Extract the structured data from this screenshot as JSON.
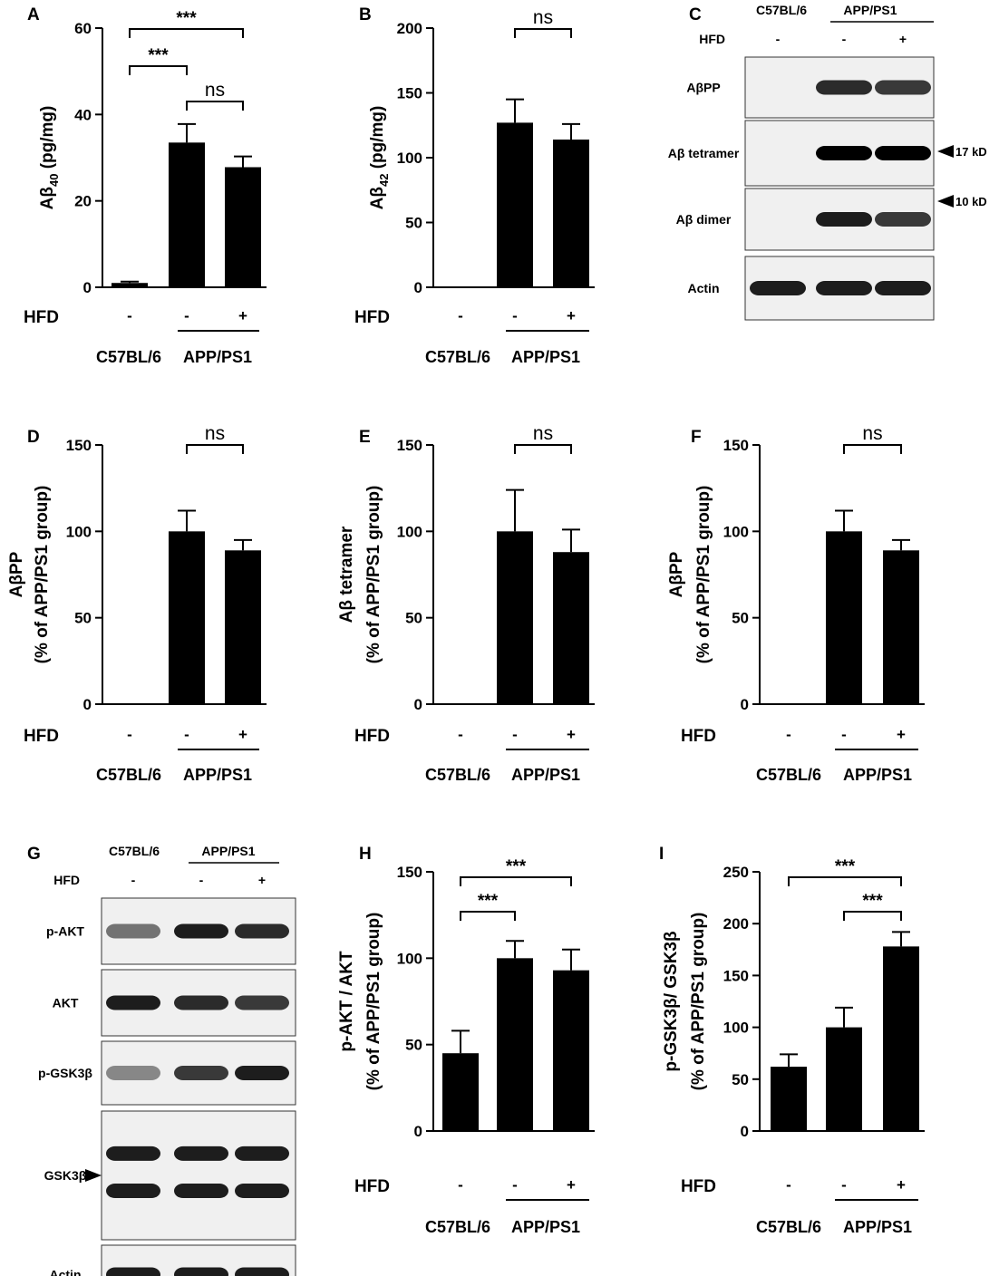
{
  "panels": [
    {
      "letter": "A",
      "ylabel": "Aβ40 (pg/mg)",
      "ylabel_parts": [
        "Aβ",
        "40",
        " (pg/mg)"
      ],
      "yticks": [
        0,
        20,
        40,
        60
      ],
      "ylim": [
        0,
        60
      ],
      "hfd_label": "HFD",
      "hfd_marks": [
        "-",
        "-",
        "+"
      ],
      "group_labels": [
        "C57BL/6",
        "APP/PS1"
      ],
      "sig": [
        {
          "from": 0,
          "to": 1,
          "label": "***"
        },
        {
          "from": 0,
          "to": 2,
          "label": "***"
        },
        {
          "from": 1,
          "to": 2,
          "label": "ns"
        }
      ]
    },
    {
      "letter": "B",
      "ylabel": "Aβ42 (pg/mg)",
      "ylabel_parts": [
        "Aβ",
        "42",
        " (pg/mg)"
      ],
      "yticks": [
        0,
        50,
        100,
        150,
        200
      ],
      "ylim": [
        0,
        200
      ],
      "hfd_label": "HFD",
      "hfd_marks": [
        "-",
        "-",
        "+"
      ],
      "group_labels": [
        "C57BL/6",
        "APP/PS1"
      ],
      "sig": [
        {
          "from": 1,
          "to": 2,
          "label": "ns"
        }
      ]
    },
    {
      "letter": "D",
      "ylabel_lines": [
        "AβPP",
        "(% of APP/PS1 group)"
      ],
      "yticks": [
        0,
        50,
        100,
        150
      ],
      "ylim": [
        0,
        150
      ],
      "hfd_label": "HFD",
      "hfd_marks": [
        "-",
        "-",
        "+"
      ],
      "group_labels": [
        "C57BL/6",
        "APP/PS1"
      ],
      "sig": [
        {
          "from": 1,
          "to": 2,
          "label": "ns"
        }
      ]
    },
    {
      "letter": "E",
      "ylabel_lines": [
        "Aβ tetramer",
        "(% of APP/PS1 group)"
      ],
      "yticks": [
        0,
        50,
        100,
        150
      ],
      "ylim": [
        0,
        150
      ],
      "hfd_label": "HFD",
      "hfd_marks": [
        "-",
        "-",
        "+"
      ],
      "group_labels": [
        "C57BL/6",
        "APP/PS1"
      ],
      "sig": [
        {
          "from": 1,
          "to": 2,
          "label": "ns"
        }
      ]
    },
    {
      "letter": "F",
      "ylabel_lines": [
        "AβPP",
        "(% of APP/PS1 group)"
      ],
      "yticks": [
        0,
        50,
        100,
        150
      ],
      "ylim": [
        0,
        150
      ],
      "hfd_label": "HFD",
      "hfd_marks": [
        "-",
        "-",
        "+"
      ],
      "group_labels": [
        "C57BL/6",
        "APP/PS1"
      ],
      "sig": [
        {
          "from": 1,
          "to": 2,
          "label": "ns"
        }
      ]
    },
    {
      "letter": "H",
      "ylabel_lines": [
        "p-AKT / AKT",
        "(% of APP/PS1 group)"
      ],
      "yticks": [
        0,
        50,
        100,
        150
      ],
      "ylim": [
        0,
        150
      ],
      "hfd_label": "HFD",
      "hfd_marks": [
        "-",
        "-",
        "+"
      ],
      "group_labels": [
        "C57BL/6",
        "APP/PS1"
      ],
      "sig": [
        {
          "from": 0,
          "to": 1,
          "label": "***"
        },
        {
          "from": 0,
          "to": 2,
          "label": "***"
        }
      ]
    },
    {
      "letter": "I",
      "ylabel_lines": [
        "p-GSK3β/ GSK3β",
        "(% of APP/PS1 group)"
      ],
      "yticks": [
        0,
        50,
        100,
        150,
        200,
        250
      ],
      "ylim": [
        0,
        250
      ],
      "hfd_label": "HFD",
      "hfd_marks": [
        "-",
        "-",
        "+"
      ],
      "group_labels": [
        "C57BL/6",
        "APP/PS1"
      ],
      "sig": [
        {
          "from": 1,
          "to": 2,
          "label": "***"
        },
        {
          "from": 0,
          "to": 2,
          "label": "***"
        }
      ]
    }
  ],
  "chart_data": [
    {
      "panel": "A",
      "type": "bar",
      "categories": [
        "C57BL/6 HFD-",
        "APP/PS1 HFD-",
        "APP/PS1 HFD+"
      ],
      "values": [
        1,
        33.5,
        27.8
      ],
      "errors": [
        0.3,
        4.3,
        2.5
      ],
      "ylabel": "Aβ40 (pg/mg)",
      "ylim": [
        0,
        60
      ]
    },
    {
      "panel": "B",
      "type": "bar",
      "categories": [
        "C57BL/6 HFD-",
        "APP/PS1 HFD-",
        "APP/PS1 HFD+"
      ],
      "values": [
        0,
        127,
        114
      ],
      "errors": [
        0,
        18,
        12
      ],
      "ylabel": "Aβ42 (pg/mg)",
      "ylim": [
        0,
        200
      ]
    },
    {
      "panel": "D",
      "type": "bar",
      "categories": [
        "C57BL/6 HFD-",
        "APP/PS1 HFD-",
        "APP/PS1 HFD+"
      ],
      "values": [
        0,
        100,
        89
      ],
      "errors": [
        0,
        12,
        6
      ],
      "ylabel": "AβPP (% of APP/PS1 group)",
      "ylim": [
        0,
        150
      ]
    },
    {
      "panel": "E",
      "type": "bar",
      "categories": [
        "C57BL/6 HFD-",
        "APP/PS1 HFD-",
        "APP/PS1 HFD+"
      ],
      "values": [
        0,
        100,
        88
      ],
      "errors": [
        0,
        24,
        13
      ],
      "ylabel": "Aβ tetramer (% of APP/PS1 group)",
      "ylim": [
        0,
        150
      ]
    },
    {
      "panel": "F",
      "type": "bar",
      "categories": [
        "C57BL/6 HFD-",
        "APP/PS1 HFD-",
        "APP/PS1 HFD+"
      ],
      "values": [
        0,
        100,
        89
      ],
      "errors": [
        0,
        12,
        6
      ],
      "ylabel": "AβPP (% of APP/PS1 group)",
      "ylim": [
        0,
        150
      ]
    },
    {
      "panel": "H",
      "type": "bar",
      "categories": [
        "C57BL/6 HFD-",
        "APP/PS1 HFD-",
        "APP/PS1 HFD+"
      ],
      "values": [
        45,
        100,
        93
      ],
      "errors": [
        13,
        10,
        12
      ],
      "ylabel": "p-AKT / AKT (% of APP/PS1 group)",
      "ylim": [
        0,
        150
      ]
    },
    {
      "panel": "I",
      "type": "bar",
      "categories": [
        "C57BL/6 HFD-",
        "APP/PS1 HFD-",
        "APP/PS1 HFD+"
      ],
      "values": [
        62,
        100,
        178
      ],
      "errors": [
        12,
        19,
        14
      ],
      "ylabel": "p-GSK3β/ GSK3β (% of APP/PS1 group)",
      "ylim": [
        0,
        250
      ]
    }
  ],
  "blot_c": {
    "letter": "C",
    "strain_labels": [
      "C57BL/6",
      "APP/PS1"
    ],
    "hfd_label": "HFD",
    "hfd_marks": [
      "-",
      "-",
      "+"
    ],
    "rows": [
      {
        "label": "AβPP",
        "bands": [
          0,
          0.85,
          0.8
        ]
      },
      {
        "label": "Aβ tetramer",
        "bands": [
          0,
          1,
          1
        ]
      },
      {
        "label": "Aβ dimer",
        "bands": [
          0,
          0.9,
          0.8
        ]
      },
      {
        "label": "Actin",
        "bands": [
          0.9,
          0.9,
          0.9
        ]
      }
    ],
    "markers": [
      "17 kD",
      "10 kD"
    ]
  },
  "blot_g": {
    "letter": "G",
    "strain_labels": [
      "C57BL/6",
      "APP/PS1"
    ],
    "hfd_label": "HFD",
    "hfd_marks": [
      "-",
      "-",
      "+"
    ],
    "rows": [
      {
        "label": "p-AKT",
        "bands": [
          0.55,
          0.9,
          0.85
        ]
      },
      {
        "label": "AKT",
        "bands": [
          0.9,
          0.85,
          0.8
        ]
      },
      {
        "label": "p-GSK3β",
        "bands": [
          0.45,
          0.8,
          0.9
        ]
      },
      {
        "label": "GSK3β",
        "bands": [
          0.9,
          0.9,
          0.9
        ]
      },
      {
        "label": "Actin",
        "bands": [
          0.9,
          0.9,
          0.9
        ]
      }
    ]
  }
}
